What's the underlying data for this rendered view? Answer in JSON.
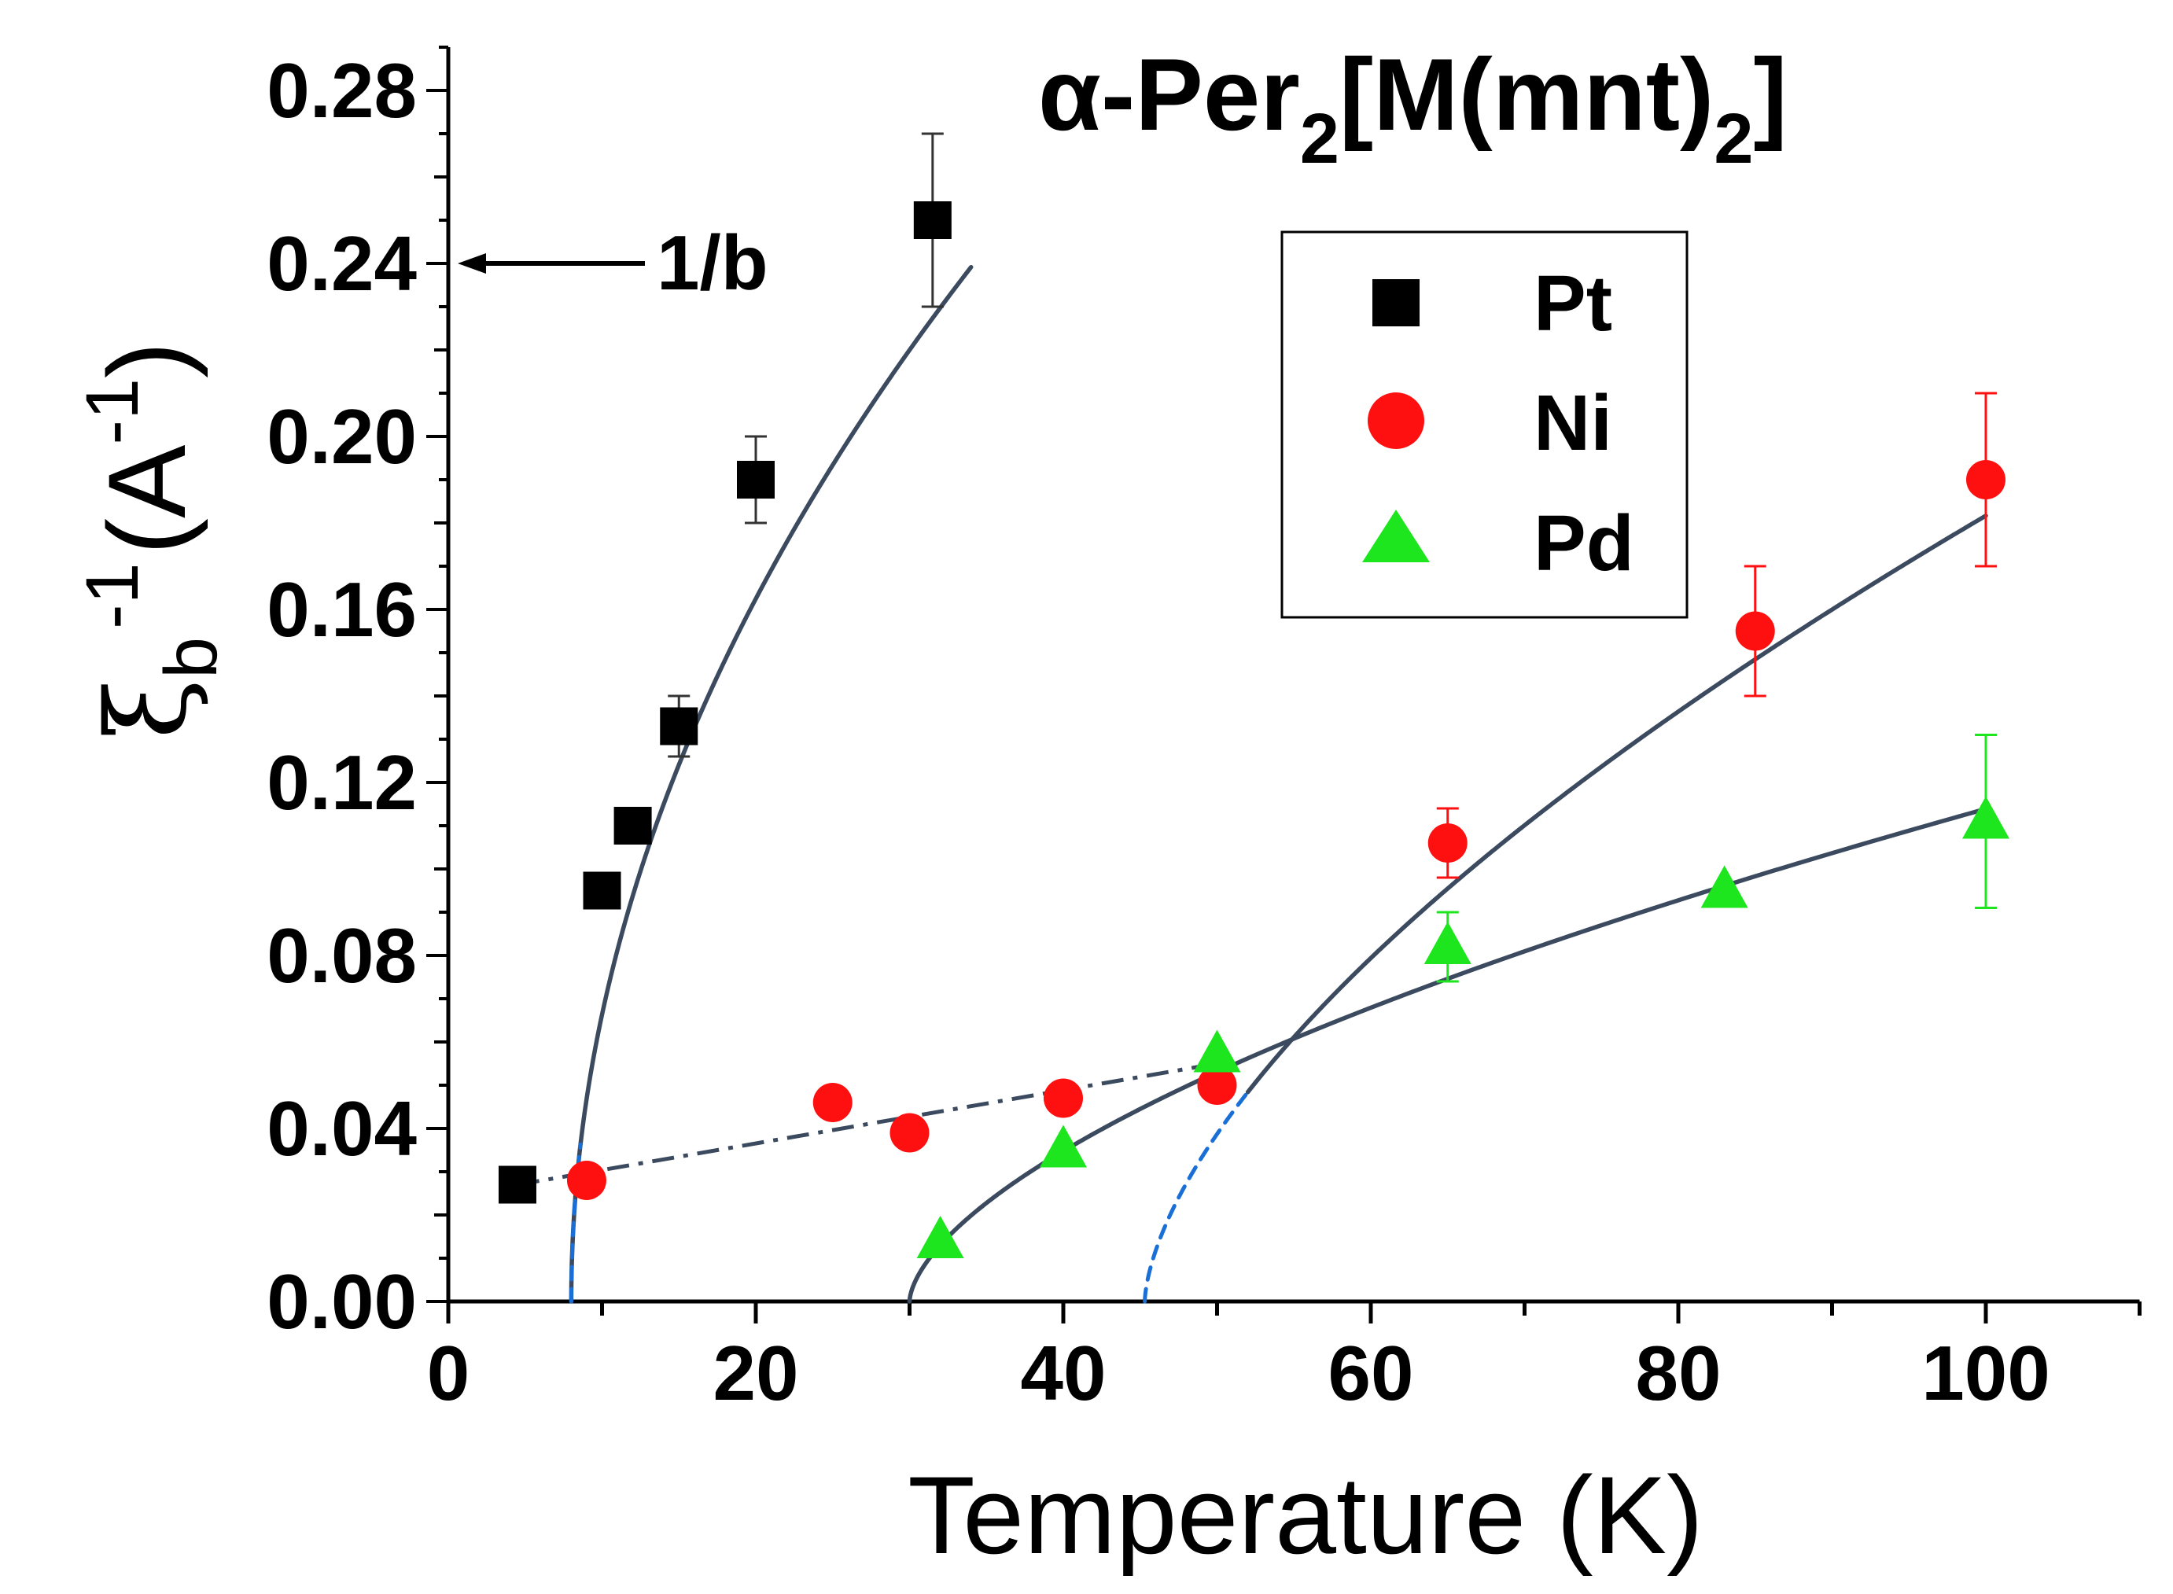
{
  "chart_data": {
    "type": "scatter",
    "title": {
      "prefix": "α-Per",
      "sub1": "2",
      "middle": "[M(mnt)",
      "sub2": "2",
      "suffix": "]"
    },
    "xlabel": "Temperature (K)",
    "ylabel": {
      "symbol": "ξ",
      "subscript": "b",
      "superscript": "-1",
      "unit_open": "(A",
      "unit_sup": "-1",
      "unit_close": ")"
    },
    "xlim": [
      0,
      110
    ],
    "ylim": [
      0,
      0.29
    ],
    "xticks": [
      0,
      20,
      40,
      60,
      80,
      100
    ],
    "xtick_labels": [
      "0",
      "20",
      "40",
      "60",
      "80",
      "100"
    ],
    "yticks": [
      0,
      0.04,
      0.08,
      0.12,
      0.16,
      0.2,
      0.24,
      0.28
    ],
    "ytick_labels": [
      "0.00",
      "0.04",
      "0.08",
      "0.12",
      "0.16",
      "0.20",
      "0.24",
      "0.28"
    ],
    "annotation": {
      "text": "1/b",
      "y": 0.24
    },
    "series": [
      {
        "name": "Pt",
        "marker": "square",
        "color": "#000000",
        "points": [
          {
            "x": 4.5,
            "y": 0.027
          },
          {
            "x": 10,
            "y": 0.095,
            "err": 0.003
          },
          {
            "x": 12,
            "y": 0.11,
            "err": 0.003
          },
          {
            "x": 15,
            "y": 0.133,
            "err": 0.007
          },
          {
            "x": 20,
            "y": 0.19,
            "err": 0.01
          },
          {
            "x": 31.5,
            "y": 0.25,
            "err": 0.02
          }
        ]
      },
      {
        "name": "Ni",
        "marker": "circle",
        "color": "#ff1010",
        "points": [
          {
            "x": 9,
            "y": 0.028
          },
          {
            "x": 25,
            "y": 0.046
          },
          {
            "x": 30,
            "y": 0.039
          },
          {
            "x": 40,
            "y": 0.047
          },
          {
            "x": 50,
            "y": 0.05
          },
          {
            "x": 65,
            "y": 0.106,
            "err": 0.008
          },
          {
            "x": 85,
            "y": 0.155,
            "err": 0.015
          },
          {
            "x": 100,
            "y": 0.19,
            "err": 0.02
          }
        ]
      },
      {
        "name": "Pd",
        "marker": "triangle",
        "color": "#1ee61e",
        "points": [
          {
            "x": 32,
            "y": 0.014
          },
          {
            "x": 40,
            "y": 0.035
          },
          {
            "x": 50,
            "y": 0.057
          },
          {
            "x": 65,
            "y": 0.082,
            "err": 0.008
          },
          {
            "x": 83,
            "y": 0.095
          },
          {
            "x": 100,
            "y": 0.111,
            "err": 0.02
          }
        ]
      }
    ],
    "fit_curves": [
      {
        "name": "Pt fit",
        "style": "solid",
        "color": "#3b4a5e",
        "x0": 8.0,
        "A": 0.0469,
        "p": 0.5,
        "xmax": 34
      },
      {
        "name": "Ni fit",
        "style": "solid",
        "color": "#3b4a5e",
        "x0": 45.3,
        "A": 0.0146,
        "p": 0.63,
        "xmin": 52,
        "xmax": 100
      },
      {
        "name": "Pd fit",
        "style": "solid",
        "color": "#3b4a5e",
        "x0": 30.0,
        "A": 0.00853,
        "p": 0.61,
        "xmax": 100
      },
      {
        "name": "Pt onset",
        "style": "dashed",
        "color": "#1a6fd6",
        "x0": 8.0,
        "A": 0.0469,
        "p": 0.5,
        "xmax": 8.6
      },
      {
        "name": "Ni onset",
        "style": "dashed",
        "color": "#1a6fd6",
        "x0": 45.3,
        "A": 0.0146,
        "p": 0.63,
        "xmax": 52
      }
    ],
    "guide_line": {
      "style": "dash-dot",
      "color": "#3b4a5e",
      "x": [
        4.5,
        50
      ],
      "y": [
        0.027,
        0.055
      ]
    }
  }
}
